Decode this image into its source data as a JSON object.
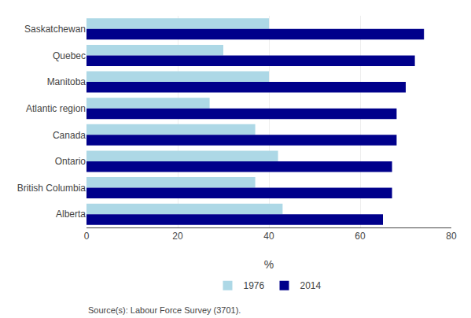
{
  "chart_data": {
    "type": "bar",
    "orientation": "horizontal",
    "categories": [
      "Saskatchewan",
      "Quebec",
      "Manitoba",
      "Atlantic region",
      "Canada",
      "Ontario",
      "British Columbia",
      "Alberta"
    ],
    "series": [
      {
        "name": "1976",
        "color": "#add8e6",
        "values": [
          40,
          30,
          40,
          27,
          37,
          42,
          37,
          43
        ]
      },
      {
        "name": "2014",
        "color": "#00008b",
        "values": [
          74,
          72,
          70,
          68,
          68,
          67,
          67,
          65
        ]
      }
    ],
    "xlabel": "%",
    "xlim": [
      0,
      80
    ],
    "xticks": [
      0,
      20,
      40,
      60,
      80
    ],
    "grid": true,
    "legend": "bottom",
    "annotations": [
      "Source(s): Labour Force Survey (3701)."
    ]
  }
}
